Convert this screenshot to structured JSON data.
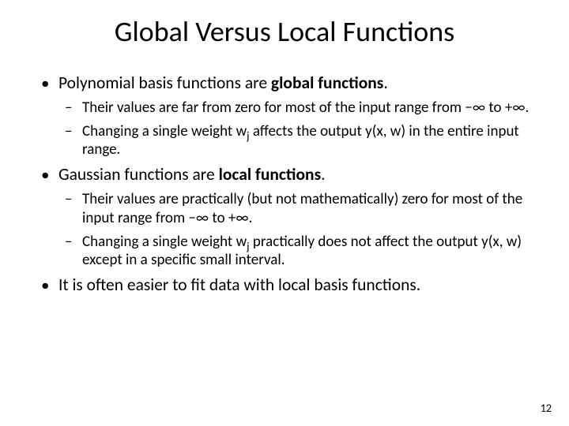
{
  "title": "Global Versus Local Functions",
  "bullets": {
    "b1": {
      "pre": "Polynomial basis functions are ",
      "bold": "global functions",
      "post": ".",
      "sub1_pre": "Their values are far from zero for most of the input range from ",
      "sub1_math": "−∞ to +∞.",
      "sub2_pre": "Changing a single weight w",
      "sub2_sub": "j",
      "sub2_post": " affects the output y(x, w) in the entire input range."
    },
    "b2": {
      "pre": "Gaussian functions are ",
      "bold": "local functions",
      "post": ".",
      "sub1_pre": "Their values are practically (but not mathematically) zero for most of the input range from ",
      "sub1_math": "−∞ to +∞.",
      "sub2_pre": "Changing a single weight w",
      "sub2_sub": "j",
      "sub2_post": " practically does not affect the output y(x, w) except in a specific small interval."
    },
    "b3": {
      "text": "It is often easier to fit data with local basis functions."
    }
  },
  "page_number": "12",
  "style": {
    "background_color": "#ffffff",
    "text_color": "#000000",
    "title_fontsize": 36,
    "body_fontsize": 21.5,
    "sub_fontsize": 19,
    "font_family": "Calibri"
  }
}
